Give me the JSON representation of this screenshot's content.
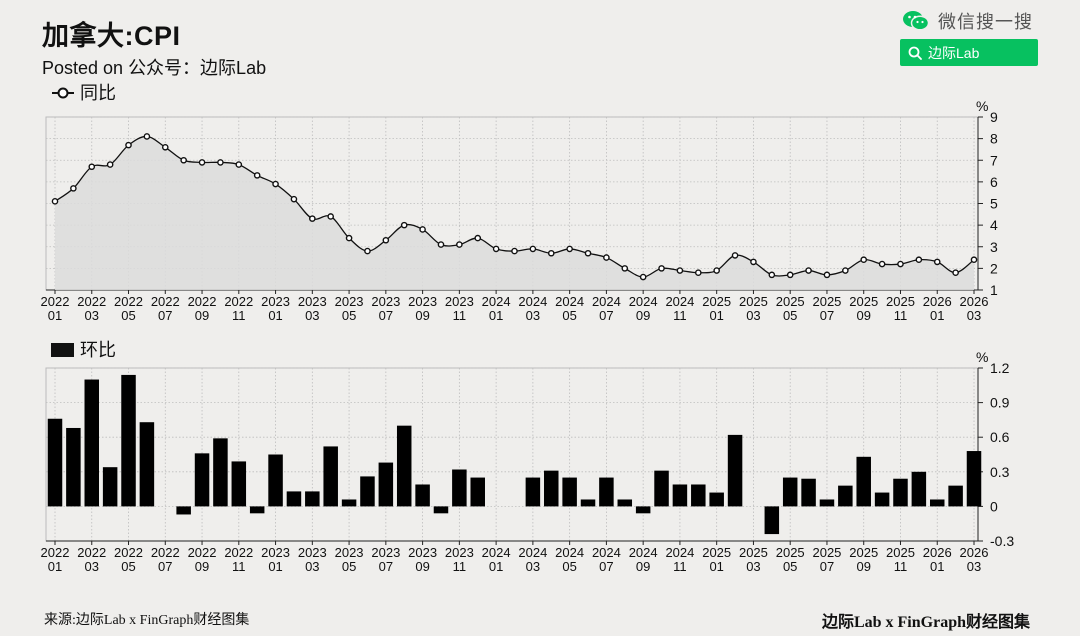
{
  "header": {
    "title": "加拿大:CPI",
    "subtitle": "Posted on 公众号：边际Lab"
  },
  "wechat": {
    "brand_text": "微信搜一搜",
    "search_text": "边际Lab",
    "accent": "#07c160"
  },
  "footer": {
    "source": "来源:边际Lab x FinGraph财经图集",
    "brand": "边际Lab x FinGraph财经图集"
  },
  "chart_data": [
    {
      "type": "area",
      "legend": "同比",
      "unit": "%",
      "ylim": [
        1,
        9
      ],
      "yticks": [
        1,
        2,
        3,
        4,
        5,
        6,
        7,
        8,
        9
      ],
      "grid": true,
      "x": [
        "2022-01",
        "2022-02",
        "2022-03",
        "2022-04",
        "2022-05",
        "2022-06",
        "2022-07",
        "2022-08",
        "2022-09",
        "2022-10",
        "2022-11",
        "2022-12",
        "2023-01",
        "2023-02",
        "2023-03",
        "2023-04",
        "2023-05",
        "2023-06",
        "2023-07",
        "2023-08",
        "2023-09",
        "2023-10",
        "2023-11",
        "2023-12",
        "2024-01",
        "2024-02",
        "2024-03",
        "2024-04",
        "2024-05",
        "2024-06",
        "2024-07",
        "2024-08",
        "2024-09",
        "2024-10",
        "2024-11",
        "2024-12",
        "2025-01",
        "2025-02",
        "2025-03",
        "2025-04",
        "2025-05",
        "2025-06",
        "2025-07",
        "2025-08",
        "2025-09",
        "2025-10",
        "2025-11",
        "2025-12",
        "2026-01",
        "2026-02",
        "2026-03"
      ],
      "values": [
        5.1,
        5.7,
        6.7,
        6.8,
        7.7,
        8.1,
        7.6,
        7.0,
        6.9,
        6.9,
        6.8,
        6.3,
        5.9,
        5.2,
        4.3,
        4.4,
        3.4,
        2.8,
        3.3,
        4.0,
        3.8,
        3.1,
        3.1,
        3.4,
        2.9,
        2.8,
        2.9,
        2.7,
        2.9,
        2.7,
        2.5,
        2.0,
        1.6,
        2.0,
        1.9,
        1.8,
        1.9,
        2.6,
        2.3,
        1.7,
        1.7,
        1.9,
        1.7,
        1.9,
        2.4,
        2.2,
        2.2,
        2.4,
        2.3,
        1.8,
        2.4
      ],
      "xtick_years": [
        "2022",
        "2022",
        "2022",
        "2022",
        "2022",
        "2022",
        "2023",
        "2023",
        "2023",
        "2023",
        "2023",
        "2023",
        "2024",
        "2024",
        "2024",
        "2024",
        "2024",
        "2024",
        "2025",
        "2025",
        "2025",
        "2025",
        "2025",
        "2025",
        "2026",
        "2026"
      ],
      "xtick_months": [
        "01",
        "03",
        "05",
        "07",
        "09",
        "11",
        "01",
        "03",
        "05",
        "07",
        "09",
        "11",
        "01",
        "03",
        "05",
        "07",
        "09",
        "11",
        "01",
        "03",
        "05",
        "07",
        "09",
        "11",
        "01",
        "03"
      ]
    },
    {
      "type": "bar",
      "legend": "环比",
      "unit": "%",
      "ylim": [
        -0.3,
        1.2
      ],
      "yticks": [
        -0.3,
        0,
        0.3,
        0.6,
        0.9,
        1.2
      ],
      "grid": true,
      "x": [
        "2022-01",
        "2022-02",
        "2022-03",
        "2022-04",
        "2022-05",
        "2022-06",
        "2022-07",
        "2022-08",
        "2022-09",
        "2022-10",
        "2022-11",
        "2022-12",
        "2023-01",
        "2023-02",
        "2023-03",
        "2023-04",
        "2023-05",
        "2023-06",
        "2023-07",
        "2023-08",
        "2023-09",
        "2023-10",
        "2023-11",
        "2023-12",
        "2024-01",
        "2024-02",
        "2024-03",
        "2024-04",
        "2024-05",
        "2024-06",
        "2024-07",
        "2024-08",
        "2024-09",
        "2024-10",
        "2024-11",
        "2024-12",
        "2025-01",
        "2025-02",
        "2025-03",
        "2025-04",
        "2025-05",
        "2025-06",
        "2025-07",
        "2025-08",
        "2025-09",
        "2025-10",
        "2025-11",
        "2025-12",
        "2026-01",
        "2026-02",
        "2026-03"
      ],
      "values": [
        0.76,
        0.68,
        1.1,
        0.34,
        1.14,
        0.73,
        0,
        -0.07,
        0.46,
        0.59,
        0.39,
        -0.06,
        0.45,
        0.13,
        0.13,
        0.52,
        0.06,
        0.26,
        0.38,
        0.7,
        0.19,
        -0.06,
        0.32,
        0.25,
        0,
        0,
        0.25,
        0.31,
        0.25,
        0.06,
        0.25,
        0.06,
        -0.06,
        0.31,
        0.19,
        0.19,
        0.12,
        0.62,
        0,
        -0.24,
        0.25,
        0.24,
        0.06,
        0.18,
        0.43,
        0.12,
        0.24,
        0.3,
        0.06,
        0.18,
        0.48
      ],
      "xtick_years": [
        "2022",
        "2022",
        "2022",
        "2022",
        "2022",
        "2022",
        "2023",
        "2023",
        "2023",
        "2023",
        "2023",
        "2023",
        "2024",
        "2024",
        "2024",
        "2024",
        "2024",
        "2024",
        "2025",
        "2025",
        "2025",
        "2025",
        "2025",
        "2025",
        "2026",
        "2026"
      ],
      "xtick_months": [
        "01",
        "03",
        "05",
        "07",
        "09",
        "11",
        "01",
        "03",
        "05",
        "07",
        "09",
        "11",
        "01",
        "03",
        "05",
        "07",
        "09",
        "11",
        "01",
        "03",
        "05",
        "07",
        "09",
        "11",
        "01",
        "03"
      ]
    }
  ]
}
